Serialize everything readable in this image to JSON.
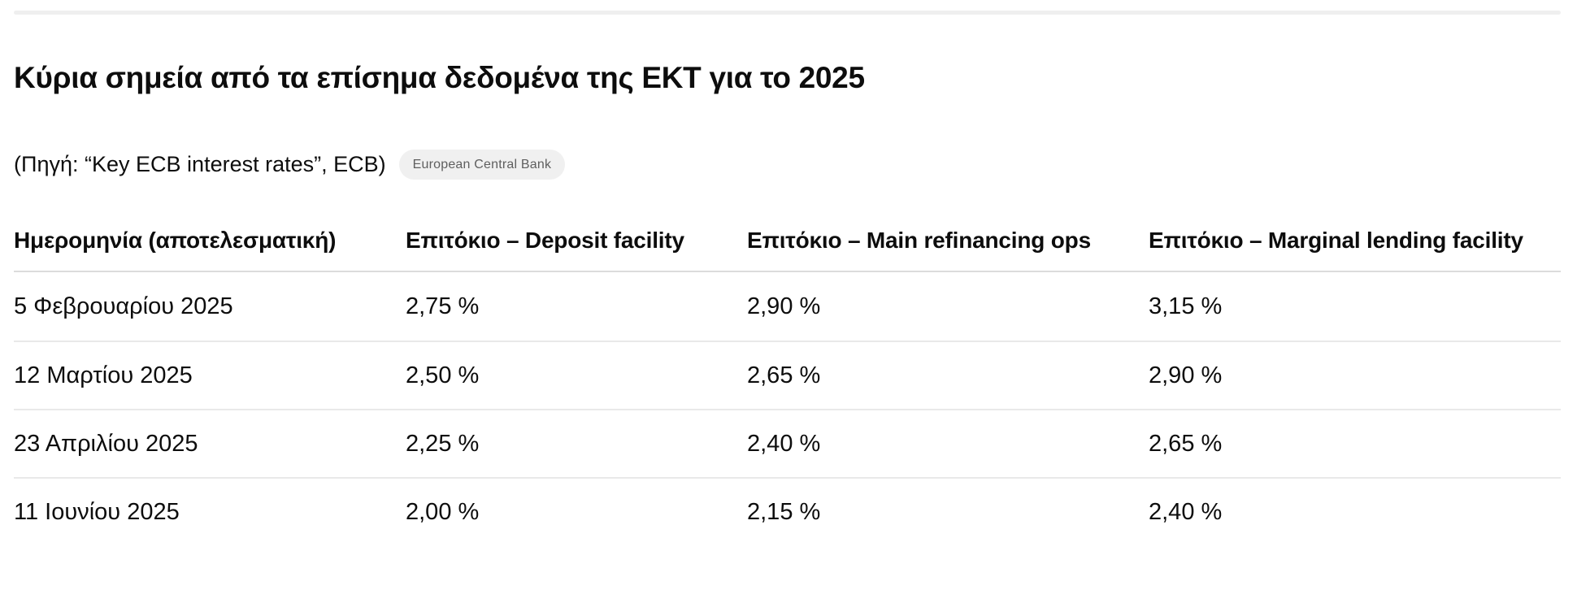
{
  "page": {
    "heading": "Κύρια σημεία από τα επίσημα δεδομένα της ΕΚΤ για το 2025",
    "source_line": "(Πηγή: “Key ECB interest rates”, ECB)",
    "source_badge_label": "European Central Bank"
  },
  "table": {
    "columns": [
      "Ημερομηνία (αποτελεσματική)",
      "Επιτόκιο – Deposit facility",
      "Επιτόκιο – Main refinancing ops",
      "Επιτόκιο – Marginal lending facility"
    ],
    "rows": [
      [
        "5 Φεβρουαρίου 2025",
        "2,75 %",
        "2,90 %",
        "3,15 %"
      ],
      [
        "12 Μαρτίου 2025",
        "2,50 %",
        "2,65 %",
        "2,90 %"
      ],
      [
        "23 Απριλίου 2025",
        "2,25 %",
        "2,40 %",
        "2,65 %"
      ],
      [
        "11 Ιουνίου 2025",
        "2,00 %",
        "2,15 %",
        "2,40 %"
      ]
    ]
  },
  "colors": {
    "text": "#0d0d0d",
    "top_rule": "#efefef",
    "header_divider": "#dcdcdc",
    "row_divider": "#e9e9e9",
    "badge_background": "#f0f0f0",
    "badge_text": "#5f5f5f"
  }
}
